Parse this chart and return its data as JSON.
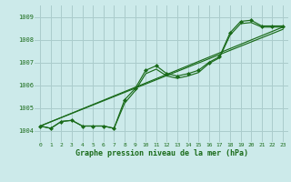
{
  "title": "Graphe pression niveau de la mer (hPa)",
  "bg_color": "#cceaea",
  "grid_color": "#aacccc",
  "line_color": "#1a6b1a",
  "marker_color": "#1a6b1a",
  "xlim": [
    -0.5,
    23.5
  ],
  "ylim": [
    1003.5,
    1009.5
  ],
  "yticks": [
    1004,
    1005,
    1006,
    1007,
    1008,
    1009
  ],
  "xticks": [
    0,
    1,
    2,
    3,
    4,
    5,
    6,
    7,
    8,
    9,
    10,
    11,
    12,
    13,
    14,
    15,
    16,
    17,
    18,
    19,
    20,
    21,
    22,
    23
  ],
  "series_main_x": [
    0,
    1,
    2,
    3,
    4,
    5,
    6,
    7,
    8,
    9,
    10,
    11,
    12,
    13,
    14,
    15,
    16,
    17,
    18,
    19,
    20,
    21,
    22,
    23
  ],
  "series_main_y": [
    1004.2,
    1004.1,
    1004.4,
    1004.45,
    1004.2,
    1004.2,
    1004.2,
    1004.1,
    1005.35,
    1005.85,
    1006.65,
    1006.85,
    1006.5,
    1006.4,
    1006.5,
    1006.65,
    1007.0,
    1007.25,
    1008.3,
    1008.8,
    1008.85,
    1008.6,
    1008.6,
    1008.6
  ],
  "series2_x": [
    0,
    1,
    2,
    3,
    4,
    5,
    6,
    7,
    8,
    9,
    10,
    11,
    12,
    13,
    14,
    15,
    16,
    17,
    18,
    19,
    20,
    21,
    22,
    23
  ],
  "series2_y": [
    1004.2,
    1004.1,
    1004.4,
    1004.45,
    1004.2,
    1004.2,
    1004.2,
    1004.1,
    1005.2,
    1005.75,
    1006.5,
    1006.7,
    1006.4,
    1006.3,
    1006.4,
    1006.55,
    1006.95,
    1007.2,
    1008.2,
    1008.7,
    1008.75,
    1008.55,
    1008.55,
    1008.55
  ],
  "trend1_x": [
    0,
    23
  ],
  "trend1_y": [
    1004.2,
    1008.55
  ],
  "trend2_x": [
    0,
    23
  ],
  "trend2_y": [
    1004.2,
    1008.45
  ]
}
